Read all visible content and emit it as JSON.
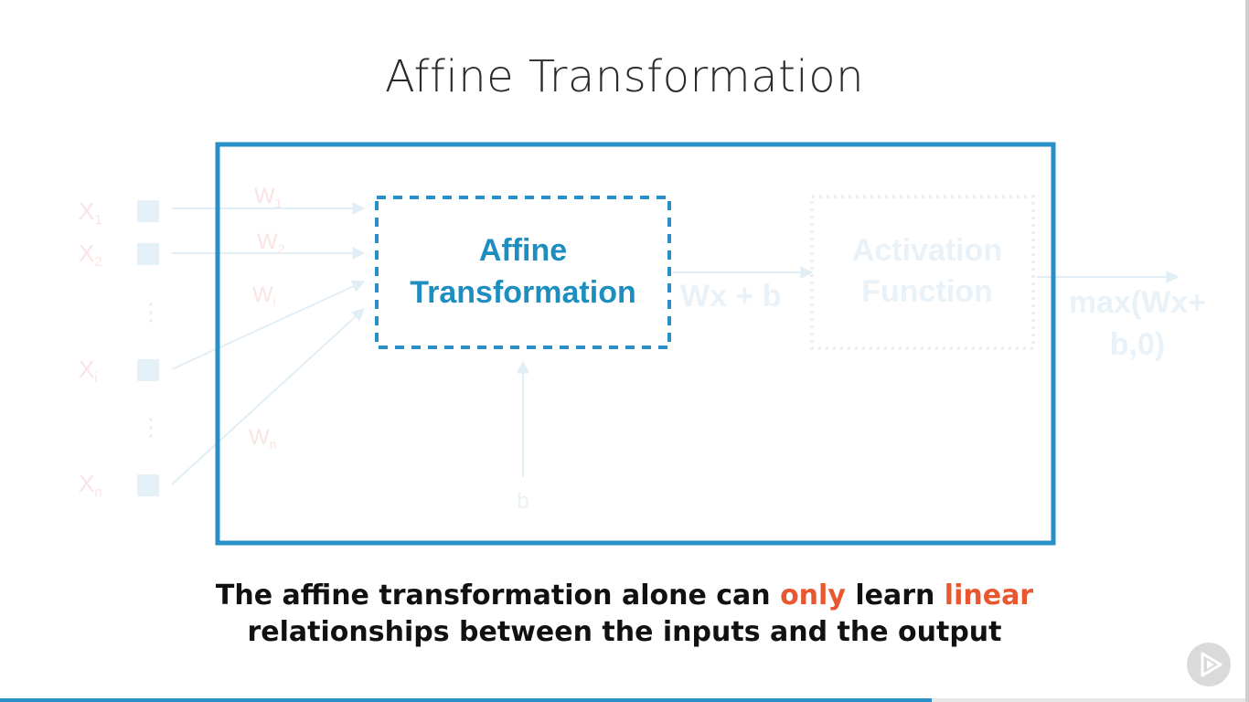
{
  "slide": {
    "title": "Affine Transformation",
    "caption": {
      "part1": "The affine transformation alone can ",
      "highlight1": "only",
      "part2": " learn ",
      "highlight2": "linear",
      "line2": "relationships between the inputs and the output"
    }
  },
  "diagram": {
    "inputs": [
      {
        "label": "X",
        "sub": "1"
      },
      {
        "label": "X",
        "sub": "2"
      },
      {
        "label": "X",
        "sub": "i"
      },
      {
        "label": "X",
        "sub": "n"
      }
    ],
    "weights": [
      {
        "label": "W",
        "sub": "1"
      },
      {
        "label": "W",
        "sub": "2"
      },
      {
        "label": "W",
        "sub": "i"
      },
      {
        "label": "W",
        "sub": "n"
      }
    ],
    "ellipsis": "⋮",
    "affine_box": {
      "line1": "Affine",
      "line2": "Transformation"
    },
    "activation_box": {
      "line1": "Activation",
      "line2": "Function"
    },
    "affine_output": "Wx + b",
    "final_output": {
      "line1": "max(Wx+",
      "line2": "b,0)"
    },
    "bias": "b"
  },
  "player": {
    "play_icon": "play-icon",
    "progress_fraction": 0.746
  },
  "colors": {
    "accent": "#2a8fc7",
    "highlight": "#e8572f",
    "faded_input": "#fbe3e3",
    "faded_node": "#e4f1f8"
  }
}
